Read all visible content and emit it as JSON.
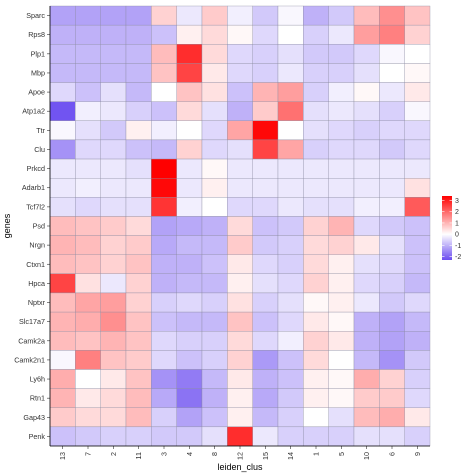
{
  "chart_data": {
    "type": "heatmap",
    "xlabel": "leiden_clus",
    "ylabel": "genes",
    "x_categories": [
      "13",
      "7",
      "2",
      "11",
      "3",
      "4",
      "8",
      "12",
      "15",
      "14",
      "1",
      "5",
      "10",
      "6",
      "9"
    ],
    "y_categories": [
      "Sparc",
      "Rps8",
      "Plp1",
      "Mbp",
      "Apoe",
      "Atp1a2",
      "Ttr",
      "Clu",
      "Prkcd",
      "Adarb1",
      "Tcf7l2",
      "Psd",
      "Nrgn",
      "Ctxn1",
      "Hpca",
      "Nptxr",
      "Slc17a7",
      "Camk2a",
      "Camk2n1",
      "Ly6h",
      "Rtn1",
      "Gap43",
      "Penk"
    ],
    "color_scale": {
      "min": -2.3,
      "mid": 0,
      "max": 3.4,
      "low_color": "#6b4cf0",
      "mid_color": "#ffffff",
      "high_color": "#ff0000",
      "ticks": [
        -2,
        -1,
        0,
        1,
        2,
        3
      ],
      "tick_labels": [
        "-2",
        "-1",
        "0",
        "1",
        "2",
        "3"
      ]
    },
    "values": [
      [
        -1.2,
        -1.2,
        -1.2,
        -1.2,
        0.6,
        -0.3,
        0.7,
        -0.2,
        -0.7,
        -0.1,
        -1.0,
        -0.7,
        0.9,
        1.5,
        0.8
      ],
      [
        -1.0,
        -1.0,
        -1.0,
        -1.0,
        -0.8,
        0.2,
        0.5,
        0.1,
        -0.5,
        0.0,
        -0.6,
        -0.3,
        1.3,
        1.7,
        0.6
      ],
      [
        -0.9,
        -0.9,
        -0.9,
        -0.9,
        0.9,
        2.8,
        0.5,
        -0.5,
        -0.6,
        -0.4,
        -0.7,
        -0.7,
        -0.5,
        -0.1,
        0.0
      ],
      [
        -0.9,
        -0.9,
        -0.9,
        -0.9,
        0.8,
        2.5,
        0.3,
        -0.5,
        -0.6,
        -0.3,
        -0.6,
        -0.6,
        -0.4,
        0.0,
        0.1
      ],
      [
        -0.5,
        -0.8,
        -0.4,
        -0.9,
        0.0,
        0.8,
        0.4,
        -0.8,
        1.0,
        1.3,
        -0.6,
        -0.2,
        0.1,
        -0.3,
        0.3
      ],
      [
        -2.2,
        -0.2,
        -0.3,
        -0.6,
        -0.8,
        0.5,
        -0.4,
        -1.0,
        0.7,
        1.9,
        -0.4,
        -0.3,
        -0.4,
        -0.6,
        -0.1
      ],
      [
        -0.1,
        -0.4,
        -0.7,
        0.2,
        -0.2,
        0.0,
        -0.5,
        1.2,
        3.3,
        0.0,
        -0.4,
        -0.5,
        -0.6,
        -0.5,
        -0.5
      ],
      [
        -1.4,
        -0.5,
        -0.5,
        -0.8,
        -0.9,
        0.6,
        -0.5,
        -0.4,
        2.5,
        1.2,
        -0.6,
        -0.5,
        -0.5,
        -0.7,
        -0.5
      ],
      [
        -0.3,
        -0.3,
        -0.3,
        -0.4,
        3.4,
        -0.3,
        0.1,
        -0.3,
        -0.3,
        -0.3,
        -0.3,
        -0.3,
        -0.3,
        -0.3,
        -0.3
      ],
      [
        -0.3,
        -0.2,
        -0.3,
        -0.3,
        3.3,
        -0.3,
        0.2,
        -0.3,
        -0.3,
        -0.3,
        -0.3,
        -0.3,
        -0.3,
        -0.3,
        0.4
      ],
      [
        -0.4,
        -0.5,
        -0.4,
        -0.4,
        2.7,
        -0.2,
        0.0,
        -0.5,
        -0.5,
        -0.3,
        -0.4,
        -0.4,
        -0.2,
        -0.2,
        2.2
      ],
      [
        0.9,
        0.8,
        0.7,
        0.5,
        -1.2,
        -1.1,
        -1.0,
        0.5,
        -0.8,
        -0.7,
        0.6,
        1.0,
        -0.5,
        -0.7,
        -0.8
      ],
      [
        1.0,
        0.9,
        0.6,
        0.7,
        -1.1,
        -0.9,
        -0.9,
        0.7,
        -0.7,
        -0.6,
        0.5,
        0.6,
        0.3,
        -0.4,
        -0.8
      ],
      [
        0.9,
        0.8,
        0.6,
        0.8,
        -1.0,
        -1.0,
        -0.8,
        0.3,
        -0.5,
        -0.6,
        0.5,
        0.2,
        -0.4,
        -0.5,
        -0.8
      ],
      [
        2.5,
        0.4,
        -0.3,
        0.6,
        -1.0,
        -0.9,
        -0.9,
        0.2,
        -0.4,
        -0.5,
        0.6,
        0.2,
        -0.5,
        -0.6,
        -0.9
      ],
      [
        0.9,
        1.2,
        1.3,
        0.6,
        -0.6,
        -0.5,
        -0.6,
        0.4,
        -0.6,
        -0.4,
        0.1,
        0.2,
        -0.3,
        -0.7,
        -0.5
      ],
      [
        1.0,
        1.1,
        1.5,
        0.8,
        -0.8,
        -0.9,
        -0.9,
        0.8,
        -0.8,
        -0.5,
        0.3,
        0.1,
        -1.0,
        -1.2,
        -0.9
      ],
      [
        0.9,
        0.8,
        1.0,
        0.8,
        -0.5,
        -0.6,
        -0.6,
        0.5,
        -0.5,
        -0.2,
        0.6,
        0.3,
        -1.0,
        -1.2,
        -1.0
      ],
      [
        -0.1,
        1.7,
        0.8,
        0.7,
        -0.5,
        -0.8,
        -0.6,
        0.6,
        -1.3,
        -0.8,
        0.5,
        0.0,
        -0.9,
        -1.4,
        -0.7
      ],
      [
        1.1,
        0.0,
        0.3,
        0.8,
        -1.4,
        -1.7,
        -0.9,
        0.3,
        -1.0,
        -0.8,
        0.2,
        0.1,
        1.1,
        0.6,
        -0.6
      ],
      [
        1.0,
        0.3,
        0.5,
        0.9,
        -1.1,
        -1.8,
        -1.0,
        0.2,
        -1.1,
        -0.7,
        0.2,
        0.1,
        0.7,
        0.7,
        -0.5
      ],
      [
        0.7,
        0.5,
        0.5,
        0.9,
        -0.6,
        -1.2,
        -0.8,
        0.2,
        -0.9,
        -0.6,
        0.0,
        -0.4,
        0.9,
        1.1,
        0.3
      ],
      [
        -0.8,
        -0.7,
        -0.6,
        -0.6,
        -0.7,
        -0.7,
        -0.4,
        2.8,
        -0.3,
        -0.6,
        -0.6,
        -0.6,
        -0.4,
        -0.4,
        -0.6
      ]
    ]
  }
}
